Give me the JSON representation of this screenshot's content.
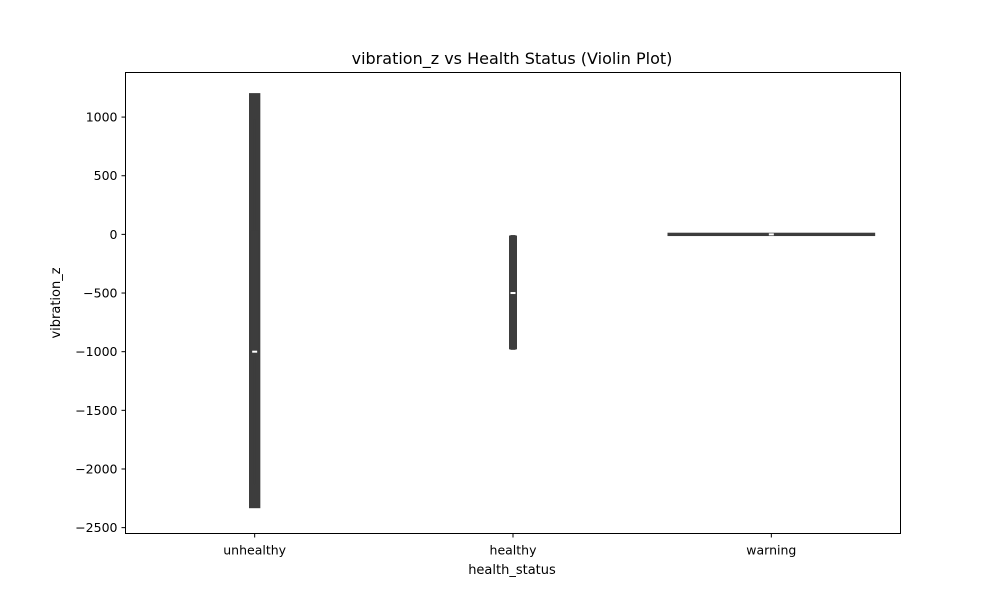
{
  "chart_data": {
    "type": "violin",
    "title": "vibration_z vs Health Status (Violin Plot)",
    "xlabel": "health_status",
    "ylabel": "vibration_z",
    "categories": [
      "unhealthy",
      "healthy",
      "warning"
    ],
    "ylim": [
      -2550,
      1380
    ],
    "yticks": [
      1000,
      500,
      0,
      -500,
      -1000,
      -1500,
      -2000,
      -2500
    ],
    "ytick_labels": [
      "1000",
      "500",
      "0",
      "−500",
      "−1000",
      "−1500",
      "−2000",
      "−2500"
    ],
    "grid": false,
    "legend": "none",
    "violin_color": "#3d3d3d",
    "median_color": "#ffffff",
    "violins": [
      {
        "category": "unhealthy",
        "min": -2330,
        "max": 1200,
        "q1": -1040,
        "median": -1000,
        "q3": 30,
        "whisker_low": -2130,
        "whisker_high": 980,
        "half_width": 0.02
      },
      {
        "category": "healthy",
        "min": -980,
        "max": -10,
        "q1": -980,
        "median": -500,
        "q3": -10,
        "whisker_low": -980,
        "whisker_high": -10,
        "half_width": 0.008
      },
      {
        "category": "warning",
        "min": -10,
        "max": 10,
        "q1": -4,
        "median": 0,
        "q3": 4,
        "whisker_low": -8,
        "whisker_high": 8,
        "half_width": 0.4
      }
    ]
  }
}
